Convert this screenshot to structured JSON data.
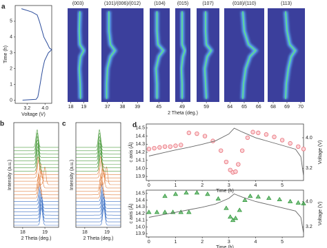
{
  "chart_data": [
    {
      "type": "line",
      "panel_label": "a",
      "xlabel": "Voltage (V)",
      "ylabel": "Time (h)",
      "color": "#2b4c9b",
      "x": [
        3.0,
        3.6,
        3.68,
        3.72,
        3.78,
        3.84,
        3.9,
        3.98,
        4.15,
        4.3,
        4.2,
        4.1,
        3.95,
        3.85,
        3.75,
        3.65,
        3.4,
        2.95
      ],
      "values": [
        0,
        0.05,
        0.2,
        0.5,
        1,
        1.5,
        2,
        2.5,
        3,
        3.2,
        3.3,
        3.6,
        4,
        4.5,
        5,
        5.4,
        5.6,
        5.8
      ],
      "xlim": [
        2.67,
        4.3
      ],
      "xticks": [
        3.2,
        {
          "value": 4,
          "label": "4.0"
        }
      ],
      "ylim": [
        -0.2,
        6.0
      ],
      "yticks": [
        0,
        1,
        2,
        3,
        4,
        5
      ]
    },
    {
      "type": "heatmap",
      "title": "(003)",
      "xlim": [
        17.75,
        19.35
      ],
      "xticks": [
        18,
        19
      ],
      "ylim": [
        -0.2,
        6.0
      ],
      "x": [
        18.75,
        18.72,
        18.65,
        18.75,
        19.0,
        18.7,
        18.65,
        18.7
      ],
      "values": [
        0,
        1,
        2,
        2.8,
        3.2,
        3.6,
        4.5,
        5.8
      ]
    },
    {
      "type": "heatmap",
      "title": "(101)/(006)/(012)",
      "xlim": [
        36.6,
        39.4
      ],
      "xticks": [
        37,
        38,
        39
      ],
      "ylim": [
        -0.2,
        6.0
      ],
      "x": [
        36.95,
        36.95,
        37.0,
        37.2,
        37.5,
        37.2,
        37.1,
        37.1
      ],
      "values": [
        0,
        1,
        2,
        2.8,
        3.2,
        3.6,
        4.5,
        5.8
      ]
    },
    {
      "type": "heatmap",
      "title": "(104)",
      "xlim": [
        44.5,
        45.6
      ],
      "xticks": [
        45
      ],
      "ylim": [
        -0.2,
        6.0
      ],
      "x": [
        44.9,
        44.9,
        44.85,
        45.0,
        45.25,
        44.95,
        44.9,
        44.9
      ],
      "values": [
        0,
        1,
        2,
        2.8,
        3.2,
        3.6,
        4.5,
        5.8
      ]
    },
    {
      "type": "heatmap",
      "title": "(015)",
      "xlabel": "2 Theta (deg.)",
      "xlim": [
        48.5,
        49.6
      ],
      "xticks": [
        49
      ],
      "ylim": [
        -0.2,
        6.0
      ],
      "x": [
        49.0,
        49.0,
        48.95,
        49.05,
        49.2,
        49.0,
        49.0,
        49.0
      ],
      "values": [
        0,
        1,
        2,
        2.8,
        3.2,
        3.6,
        4.5,
        5.8
      ]
    },
    {
      "type": "heatmap",
      "title": "(107)",
      "xlim": [
        58.4,
        59.8
      ],
      "xticks": [
        59
      ],
      "ylim": [
        -0.2,
        6.0
      ],
      "x": [
        59.0,
        58.95,
        58.9,
        59.05,
        59.3,
        59.0,
        58.95,
        58.95
      ],
      "values": [
        0,
        1,
        2,
        2.8,
        3.2,
        3.6,
        4.5,
        5.8
      ]
    },
    {
      "type": "heatmap",
      "title": "(018)/(110)",
      "xlim": [
        63.6,
        66.4
      ],
      "xticks": [
        64,
        65,
        66
      ],
      "ylim": [
        -0.2,
        6.0
      ],
      "x": [
        64.9,
        64.95,
        65.1,
        65.4,
        65.8,
        65.3,
        65.0,
        64.9
      ],
      "values": [
        0,
        1,
        2,
        2.8,
        3.2,
        3.6,
        4.5,
        5.8
      ]
    },
    {
      "type": "heatmap",
      "title": "(113)",
      "xlim": [
        67.6,
        70.3
      ],
      "xticks": [
        68,
        69,
        70
      ],
      "ylim": [
        -0.2,
        6.0
      ],
      "x": [
        68.9,
        68.95,
        69.1,
        69.3,
        69.6,
        69.2,
        69.0,
        68.9
      ],
      "values": [
        0,
        1,
        2,
        2.8,
        3.2,
        3.6,
        4.5,
        5.8
      ]
    },
    {
      "type": "waterfall",
      "panel_label": "b",
      "xlabel": "2 Theta (deg.)",
      "ylabel": "Intensity (a.u.)",
      "xlim": [
        17.6,
        19.62
      ],
      "xticks": [
        18,
        19
      ],
      "series": [
        {
          "color": "#3a6fc4",
          "values": [
            18.85,
            18.85,
            18.84,
            18.84,
            18.83,
            18.82,
            18.8,
            18.78
          ]
        },
        {
          "color": "#e07b39",
          "values": [
            18.76,
            18.74,
            18.72,
            18.85,
            19.0,
            18.8,
            18.72,
            18.7
          ]
        },
        {
          "color": "#4a9a3c",
          "values": [
            18.7,
            18.68,
            18.68,
            18.67,
            18.67,
            18.66,
            18.66,
            18.65
          ]
        }
      ]
    },
    {
      "type": "waterfall",
      "panel_label": "c",
      "xlabel": "2 Theta (deg.)",
      "ylabel": "Intensity (a.u.)",
      "xlim": [
        17.6,
        19.62
      ],
      "xticks": [
        18,
        19
      ],
      "series": [
        {
          "color": "#3a6fc4",
          "values": [
            18.86,
            18.86,
            18.85,
            18.84,
            18.83,
            18.82,
            18.81,
            18.79
          ]
        },
        {
          "color": "#e07b39",
          "values": [
            18.77,
            18.75,
            18.73,
            18.84,
            18.98,
            18.82,
            18.74,
            18.71
          ]
        },
        {
          "color": "#4a9a3c",
          "values": [
            18.71,
            18.7,
            18.69,
            18.68,
            18.68,
            18.67,
            18.67,
            18.66
          ]
        }
      ]
    },
    {
      "type": "scatter",
      "panel_label": "d",
      "xlabel": "Time (h)",
      "ylabel": "c axis (Å)",
      "y2label": "Voltage (V)",
      "xlim": [
        -0.1,
        5.8
      ],
      "xticks": [
        0,
        1,
        2,
        3,
        4,
        5
      ],
      "ylim": [
        13.85,
        14.55
      ],
      "yticks": [
        13.9,
        {
          "value": 14,
          "label": "14.0"
        },
        14.1,
        14.2,
        14.3,
        14.4,
        14.5
      ],
      "y2lim": [
        2.88,
        4.36
      ],
      "y2ticks": [
        3.2,
        {
          "value": 4,
          "label": "4.0"
        }
      ],
      "series": [
        {
          "marker": "circle",
          "color": "#e8707a",
          "x": [
            0,
            0.2,
            0.4,
            0.6,
            0.8,
            1.0,
            1.2,
            1.5,
            1.8,
            2.1,
            2.4,
            2.7,
            2.9,
            3.05,
            3.15,
            3.25,
            3.35,
            3.5,
            3.7,
            3.9,
            4.1,
            4.4,
            4.7,
            5.0,
            5.3,
            5.6,
            5.8
          ],
          "values": [
            14.24,
            14.25,
            14.26,
            14.27,
            14.27,
            14.28,
            14.29,
            14.44,
            14.43,
            14.4,
            14.34,
            14.22,
            14.08,
            13.98,
            13.95,
            13.96,
            14.05,
            14.22,
            14.38,
            14.45,
            14.44,
            14.42,
            14.39,
            14.35,
            14.31,
            14.27,
            14.24
          ]
        },
        {
          "marker": "line",
          "axis": "y2",
          "color": "#666666",
          "x": [
            0,
            0.5,
            1,
            1.5,
            2,
            2.5,
            3,
            3.2,
            3.5,
            4,
            4.5,
            5,
            5.5,
            5.7,
            5.8
          ],
          "values": [
            3.52,
            3.6,
            3.68,
            3.75,
            3.83,
            3.92,
            4.1,
            4.25,
            4.15,
            4.0,
            3.9,
            3.8,
            3.7,
            3.5,
            3.0
          ]
        }
      ]
    },
    {
      "type": "scatter",
      "xlabel": "Time (h)",
      "ylabel": "c axis (Å)",
      "y2label": "Voltage (V)",
      "xlim": [
        -0.1,
        5.8
      ],
      "xticks": [
        0,
        1,
        2,
        3,
        4,
        5
      ],
      "ylim": [
        13.85,
        14.55
      ],
      "yticks": [
        13.9,
        {
          "value": 14,
          "label": "14.0"
        },
        14.1,
        14.2,
        14.3,
        14.4,
        14.5
      ],
      "y2lim": [
        2.88,
        4.36
      ],
      "y2ticks": [
        3.2,
        {
          "value": 4,
          "label": "4.0"
        }
      ],
      "series": [
        {
          "marker": "triangle",
          "color": "#2f9a3a",
          "x": [
            0,
            0.3,
            0.6,
            0.9,
            1.2,
            1.5,
            0.6,
            1.0,
            1.4,
            1.8,
            2.2,
            2.6,
            2.9,
            3.05,
            3.15,
            3.25,
            3.4,
            3.6,
            3.8,
            4.1,
            4.5,
            4.9,
            5.3,
            5.6,
            5.8
          ],
          "values": [
            14.22,
            14.22,
            14.22,
            14.22,
            14.22,
            14.22,
            14.46,
            14.49,
            14.51,
            14.51,
            14.49,
            14.42,
            14.28,
            14.15,
            14.1,
            14.13,
            14.25,
            14.4,
            14.46,
            14.45,
            14.43,
            14.41,
            14.38,
            14.36,
            14.35
          ]
        },
        {
          "marker": "line",
          "axis": "y2",
          "color": "#666666",
          "x": [
            0,
            0.5,
            1,
            1.5,
            2,
            2.5,
            3,
            3.2,
            3.5,
            4,
            4.5,
            5,
            5.5,
            5.7,
            5.8
          ],
          "values": [
            3.5,
            3.58,
            3.66,
            3.74,
            3.82,
            3.92,
            4.1,
            4.24,
            4.14,
            4.0,
            3.9,
            3.8,
            3.7,
            3.5,
            3.0
          ]
        }
      ]
    }
  ]
}
